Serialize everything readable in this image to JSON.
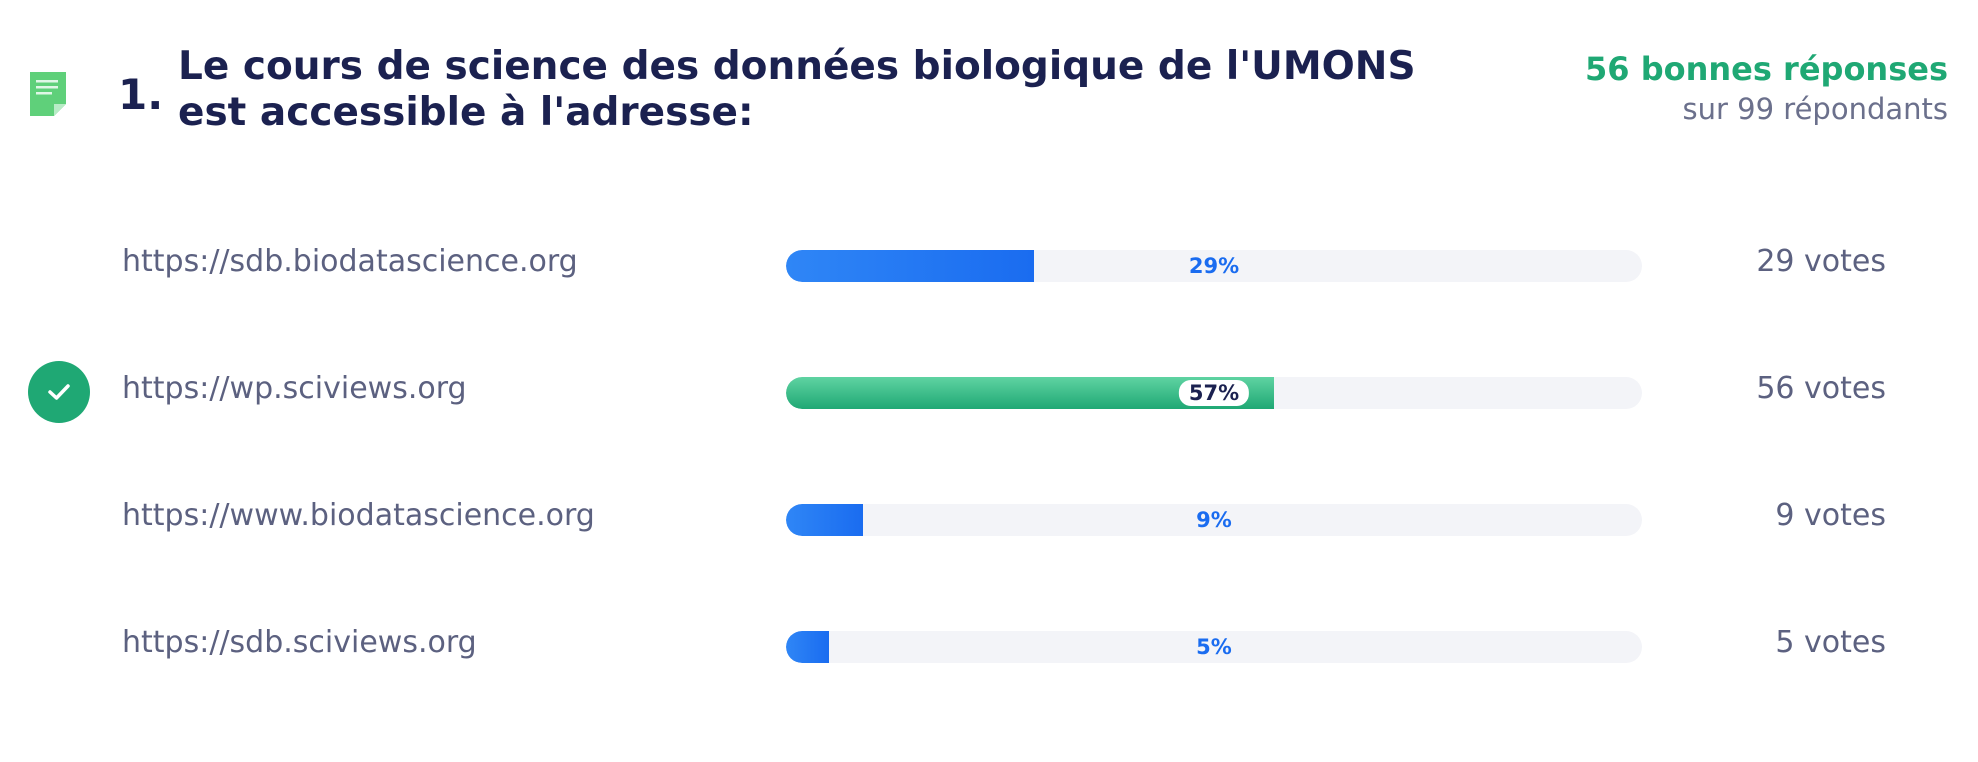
{
  "question": {
    "number": "1.",
    "text": "Le cours de science des données biologique de l'UMONS est accessible à l'adresse:",
    "icon": "document-icon"
  },
  "score": {
    "correct_label": "56 bonnes réponses",
    "total_label": "sur 99 répondants"
  },
  "colors": {
    "correct": "#1fa874",
    "bar": "#1a6cf0",
    "title": "#1b2150"
  },
  "chart_data": {
    "type": "bar",
    "orientation": "horizontal",
    "categories": [
      "https://sdb.biodatascience.org",
      "https://wp.sciviews.org",
      "https://www.biodatascience.org",
      "https://sdb.sciviews.org"
    ],
    "values": [
      29,
      57,
      9,
      5
    ],
    "value_labels": [
      "29%",
      "57%",
      "9%",
      "5%"
    ],
    "votes": [
      "29 votes",
      "56 votes",
      "9 votes",
      "5 votes"
    ],
    "correct_index": 1,
    "xlim": [
      0,
      100
    ]
  }
}
